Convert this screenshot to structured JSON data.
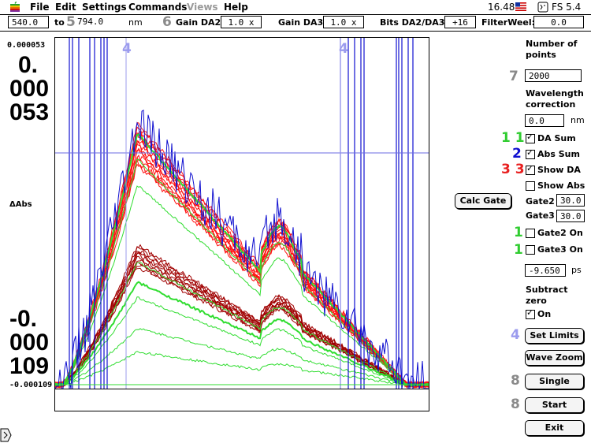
{
  "menu": {
    "file": "File",
    "edit": "Edit",
    "settings": "Settings",
    "commands": "Commands",
    "views": "Views",
    "help": "Help",
    "time": "16.48",
    "app": "FS 5.4"
  },
  "toolbar": {
    "from_value": "540.0",
    "to_label": "to",
    "to_marker": "5",
    "to_value": "794.0",
    "unit": "nm",
    "gain_marker": "6",
    "gain_da2_label": "Gain DA2:",
    "gain_da2_value": "1.0 x",
    "gain_da3_label": "Gain DA3:",
    "gain_da3_value": "1.0 x",
    "bits_label": "Bits DA2/DA3:",
    "bits_value": "+16",
    "filter_label": "FilterWeel:",
    "filter_value": "0.0"
  },
  "axis": {
    "ymax_small": "0.000053",
    "ymax_big_1": "0.",
    "ymax_big_2": "000",
    "ymax_big_3": "053",
    "ylabel": "ΔAbs",
    "ymin_big_1": "-0.",
    "ymin_big_2": "000",
    "ymin_big_3": "109",
    "ymin_small": "-0.000109",
    "marker_left": "4",
    "marker_right": "4"
  },
  "right_panel": {
    "npoints_label_1": "Number of",
    "npoints_label_2": "points",
    "npoints_marker": "7",
    "npoints_value": "2000",
    "wl_label_1": "Wavelength",
    "wl_label_2": "correction",
    "wl_value": "0.0",
    "wl_unit": "nm",
    "da_sum_marker": "1 1",
    "da_sum_label": "DA Sum",
    "abs_sum_marker": "2",
    "abs_sum_label": "Abs Sum",
    "show_da_marker": "3 3",
    "show_da_label": "Show DA",
    "show_abs_label": "Show Abs",
    "calc_gate": "Calc Gate",
    "gate2_label": "Gate2",
    "gate2_value": "30.0",
    "gate3_label": "Gate3",
    "gate3_value": "30.0",
    "gate2_on_marker": "1",
    "gate2_on_label": "Gate2 On",
    "gate3_on_marker": "1",
    "gate3_on_label": "Gate3 On",
    "ps_value": "-9.650",
    "ps_unit": "ps",
    "subtract_label_1": "Subtract",
    "subtract_label_2": "zero",
    "on_label": "On",
    "set_limits_marker": "4",
    "set_limits": "Set Limits",
    "wave_zoom": "Wave Zoom",
    "single_marker": "8",
    "single": "Single",
    "start_marker": "8",
    "start": "Start",
    "exit": "Exit"
  },
  "checks": {
    "da_sum": true,
    "abs_sum": true,
    "show_da": true,
    "show_abs": false,
    "gate2_on": false,
    "gate3_on": false,
    "subtract_on": true
  },
  "colors": {
    "blue": "#1010d0",
    "red": "#ff1010",
    "darkred": "#a00000",
    "green": "#30dd30",
    "marker_lavender": "#9b9bee"
  },
  "chart_data": {
    "type": "line",
    "xlabel": "",
    "ylabel": "ΔAbs",
    "xlim": [
      540.0,
      794.0
    ],
    "ylim": [
      -0.000109,
      5.3e-05
    ],
    "note_series": [
      {
        "color": "blue",
        "values": []
      },
      {
        "color": "red",
        "values": []
      },
      {
        "color": "darkred",
        "values": []
      },
      {
        "color": "green",
        "values": []
      }
    ]
  }
}
